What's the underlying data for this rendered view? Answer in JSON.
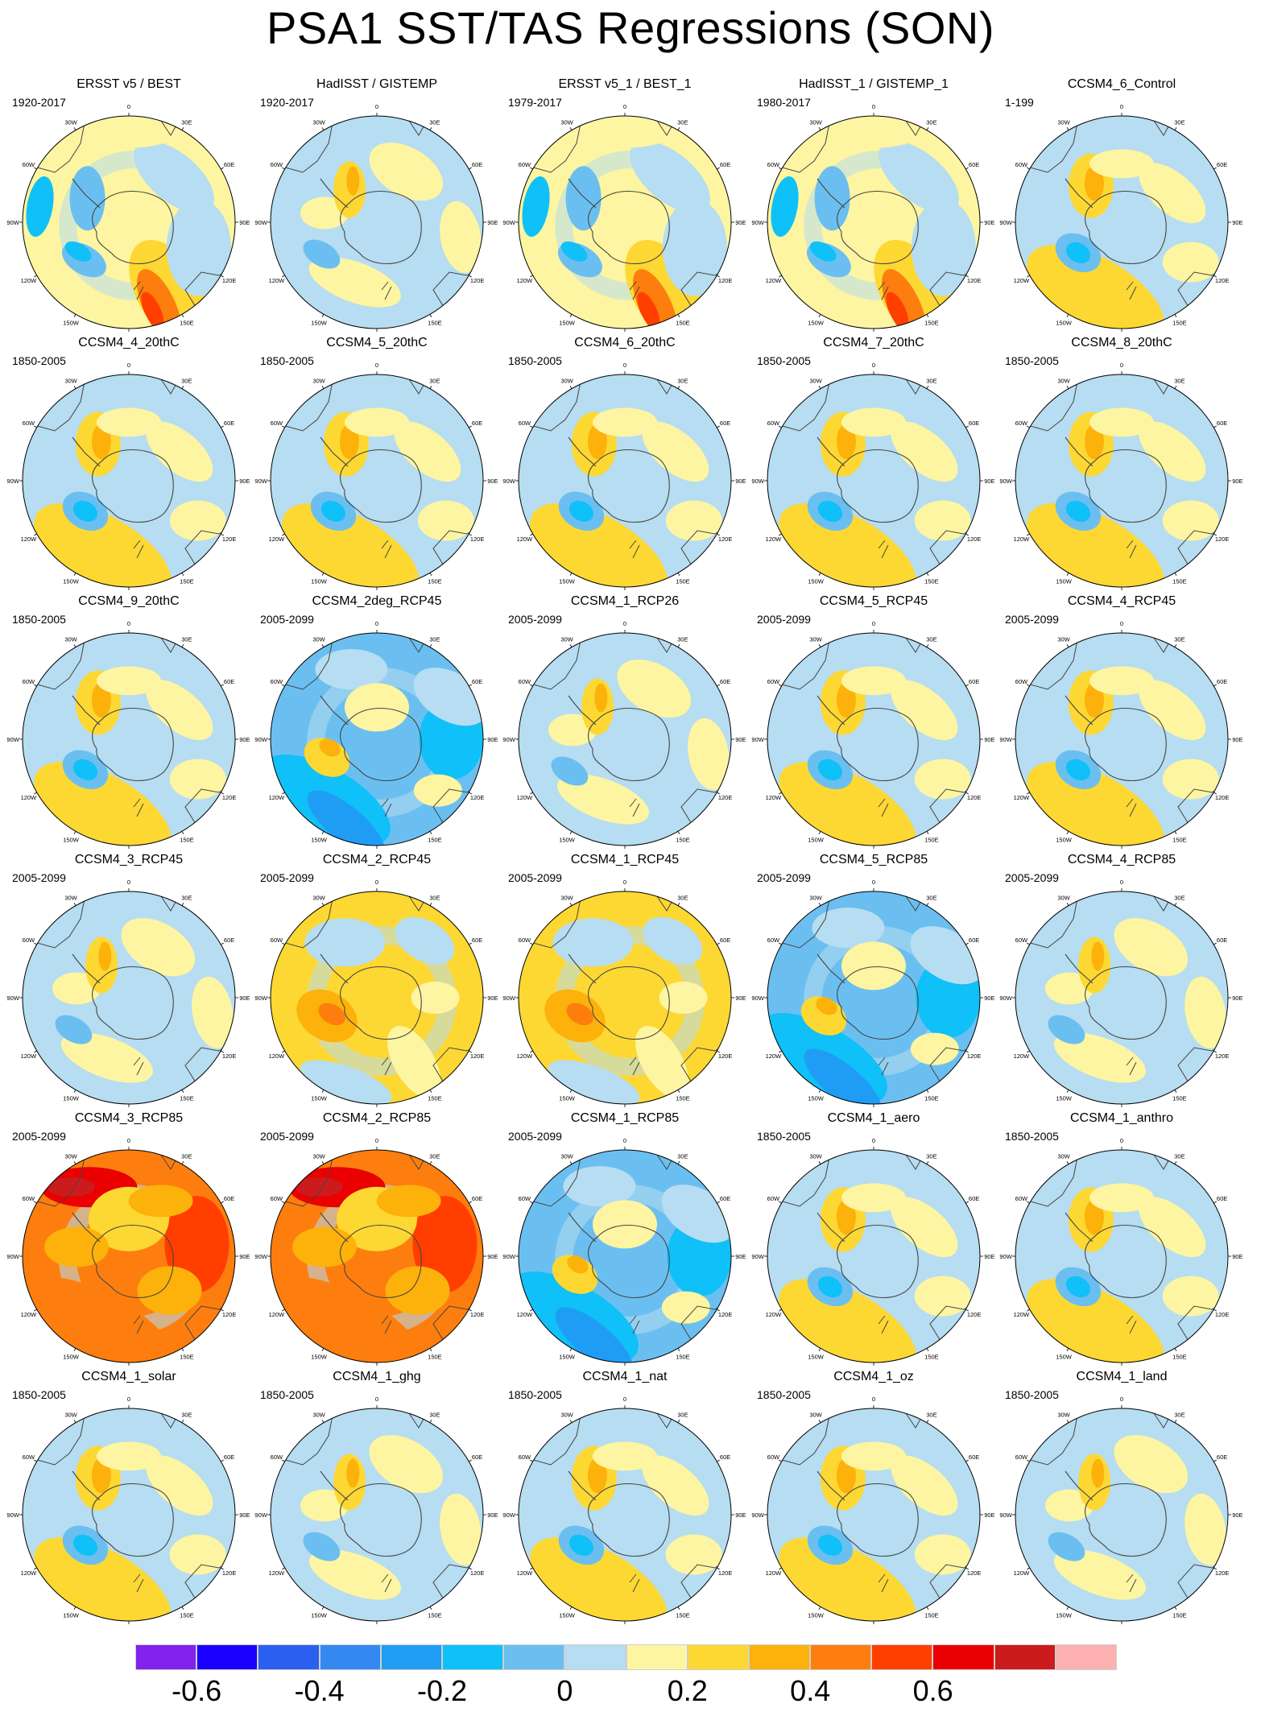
{
  "title": "PSA1 SST/TAS Regressions (SON)",
  "map_labels": {
    "lon": [
      "0",
      "30E",
      "60E",
      "90E",
      "120E",
      "150E",
      "180",
      "150W",
      "120W",
      "90W",
      "60W",
      "30W"
    ]
  },
  "panels": [
    {
      "title": "ERSST v5 / BEST",
      "period": "1920-2017",
      "pattern": "obs"
    },
    {
      "title": "HadISST / GISTEMP",
      "period": "1920-2017",
      "pattern": "weak"
    },
    {
      "title": "ERSST v5_1 / BEST_1",
      "period": "1979-2017",
      "pattern": "obs"
    },
    {
      "title": "HadISST_1 / GISTEMP_1",
      "period": "1980-2017",
      "pattern": "obs"
    },
    {
      "title": "CCSM4_6_Control",
      "period": "1-199",
      "pattern": "typical"
    },
    {
      "title": "CCSM4_4_20thC",
      "period": "1850-2005",
      "pattern": "typical"
    },
    {
      "title": "CCSM4_5_20thC",
      "period": "1850-2005",
      "pattern": "typical"
    },
    {
      "title": "CCSM4_6_20thC",
      "period": "1850-2005",
      "pattern": "typical"
    },
    {
      "title": "CCSM4_7_20thC",
      "period": "1850-2005",
      "pattern": "typical"
    },
    {
      "title": "CCSM4_8_20thC",
      "period": "1850-2005",
      "pattern": "typical"
    },
    {
      "title": "CCSM4_9_20thC",
      "period": "1850-2005",
      "pattern": "typical"
    },
    {
      "title": "CCSM4_2deg_RCP45",
      "period": "2005-2099",
      "pattern": "cool"
    },
    {
      "title": "CCSM4_1_RCP26",
      "period": "2005-2099",
      "pattern": "weak"
    },
    {
      "title": "CCSM4_5_RCP45",
      "period": "2005-2099",
      "pattern": "typical"
    },
    {
      "title": "CCSM4_4_RCP45",
      "period": "2005-2099",
      "pattern": "typical"
    },
    {
      "title": "CCSM4_3_RCP45",
      "period": "2005-2099",
      "pattern": "weak"
    },
    {
      "title": "CCSM4_2_RCP45",
      "period": "2005-2099",
      "pattern": "warmish"
    },
    {
      "title": "CCSM4_1_RCP45",
      "period": "2005-2099",
      "pattern": "warmish"
    },
    {
      "title": "CCSM4_5_RCP85",
      "period": "2005-2099",
      "pattern": "cool"
    },
    {
      "title": "CCSM4_4_RCP85",
      "period": "2005-2099",
      "pattern": "weak"
    },
    {
      "title": "CCSM4_3_RCP85",
      "period": "2005-2099",
      "pattern": "hot"
    },
    {
      "title": "CCSM4_2_RCP85",
      "period": "2005-2099",
      "pattern": "hot"
    },
    {
      "title": "CCSM4_1_RCP85",
      "period": "2005-2099",
      "pattern": "cool"
    },
    {
      "title": "CCSM4_1_aero",
      "period": "1850-2005",
      "pattern": "typical"
    },
    {
      "title": "CCSM4_1_anthro",
      "period": "1850-2005",
      "pattern": "typical"
    },
    {
      "title": "CCSM4_1_solar",
      "period": "1850-2005",
      "pattern": "typical"
    },
    {
      "title": "CCSM4_1_ghg",
      "period": "1850-2005",
      "pattern": "weak"
    },
    {
      "title": "CCSM4_1_nat",
      "period": "1850-2005",
      "pattern": "typical"
    },
    {
      "title": "CCSM4_1_oz",
      "period": "1850-2005",
      "pattern": "typical"
    },
    {
      "title": "CCSM4_1_land",
      "period": "1850-2005",
      "pattern": "weak"
    }
  ],
  "colorbar": {
    "colors": [
      "#8122ee",
      "#1b00ff",
      "#2a5ff0",
      "#3388f2",
      "#1f9df5",
      "#10c0f8",
      "#6bbff0",
      "#b6ddf1",
      "#fdf5a1",
      "#fdd833",
      "#fdb10b",
      "#fd7e0e",
      "#ff3e00",
      "#ea0000",
      "#cc1b1d",
      "#fcb0b0"
    ],
    "labels": [
      "-0.6",
      "-0.4",
      "-0.2",
      "0",
      "0.2",
      "0.4",
      "0.6"
    ],
    "label_values": [
      -0.6,
      -0.4,
      -0.2,
      0,
      0.2,
      0.4,
      0.6
    ],
    "step": 0.1,
    "min_edge": -0.7
  }
}
